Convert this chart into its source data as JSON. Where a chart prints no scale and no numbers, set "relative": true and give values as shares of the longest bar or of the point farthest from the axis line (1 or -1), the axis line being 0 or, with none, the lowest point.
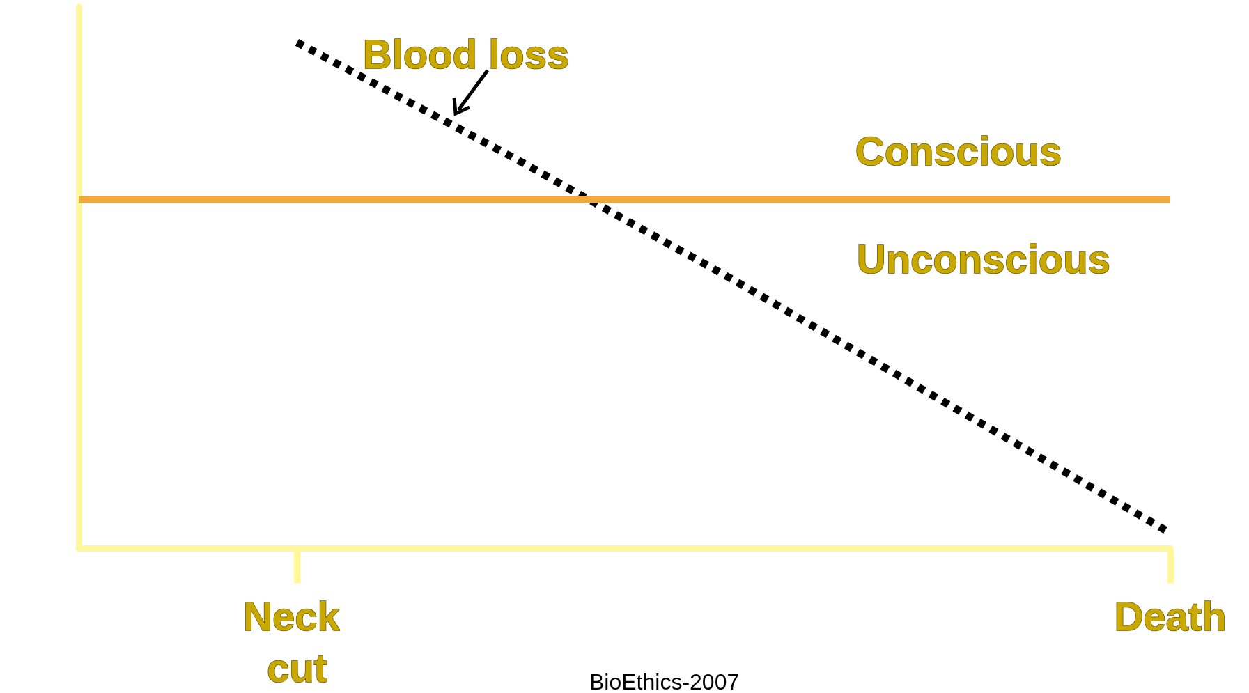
{
  "chart_data": {
    "type": "line",
    "relative": true,
    "categories": [
      null,
      "Neck cut",
      null,
      null,
      null,
      "Death"
    ],
    "series": [
      {
        "color": "#000000",
        "values": [
          null,
          1,
          0.77,
          0.53,
          0.28,
          0.03
        ]
      }
    ],
    "line_style": "dashed",
    "marker": "none",
    "grid": false,
    "ref_lines": [
      {
        "axis": "y",
        "value": 0.69,
        "color": "#f5a83a"
      }
    ],
    "annotations": [
      "Blood loss",
      "Conscious",
      "Unconscious",
      "BioEthics-2007"
    ]
  }
}
